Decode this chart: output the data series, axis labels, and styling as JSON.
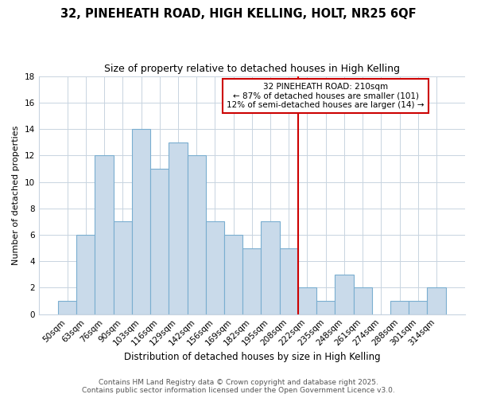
{
  "title1": "32, PINEHEATH ROAD, HIGH KELLING, HOLT, NR25 6QF",
  "title2": "Size of property relative to detached houses in High Kelling",
  "xlabel": "Distribution of detached houses by size in High Kelling",
  "ylabel": "Number of detached properties",
  "categories": [
    "50sqm",
    "63sqm",
    "76sqm",
    "90sqm",
    "103sqm",
    "116sqm",
    "129sqm",
    "142sqm",
    "156sqm",
    "169sqm",
    "182sqm",
    "195sqm",
    "208sqm",
    "222sqm",
    "235sqm",
    "248sqm",
    "261sqm",
    "274sqm",
    "288sqm",
    "301sqm",
    "314sqm"
  ],
  "values": [
    1,
    6,
    12,
    7,
    14,
    11,
    13,
    12,
    7,
    6,
    5,
    7,
    5,
    2,
    1,
    3,
    2,
    0,
    1,
    1,
    2
  ],
  "bar_color": "#c9daea",
  "bar_edge_color": "#7aaed0",
  "bar_linewidth": 0.8,
  "vline_x": 12.5,
  "vline_color": "#cc0000",
  "annotation_line1": "32 PINEHEATH ROAD: 210sqm",
  "annotation_line2": "← 87% of detached houses are smaller (101)",
  "annotation_line3": "12% of semi-detached houses are larger (14) →",
  "annotation_box_color": "#cc0000",
  "annotation_text_color": "#000000",
  "annotation_bg_color": "#ffffff",
  "ylim": [
    0,
    18
  ],
  "yticks": [
    0,
    2,
    4,
    6,
    8,
    10,
    12,
    14,
    16,
    18
  ],
  "grid_color": "#c8d4e0",
  "bg_color": "#ffffff",
  "footer1": "Contains HM Land Registry data © Crown copyright and database right 2025.",
  "footer2": "Contains public sector information licensed under the Open Government Licence v3.0.",
  "title1_fontsize": 10.5,
  "title2_fontsize": 9,
  "xlabel_fontsize": 8.5,
  "ylabel_fontsize": 8,
  "tick_fontsize": 7.5,
  "footer_fontsize": 6.5
}
